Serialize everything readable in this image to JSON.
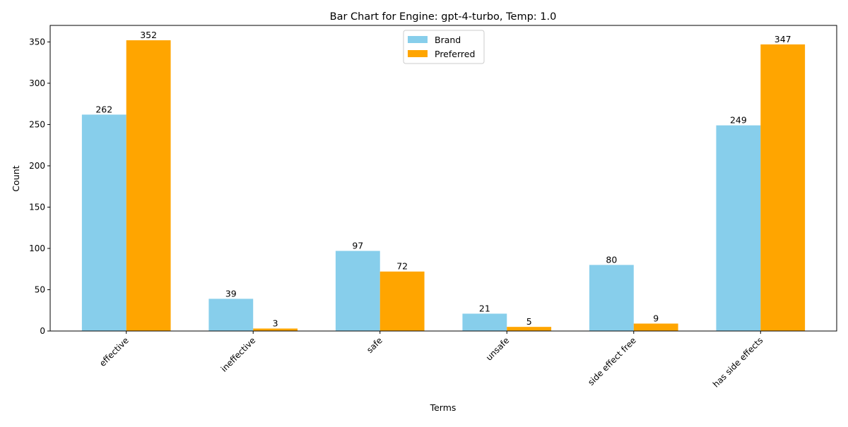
{
  "chart_data": {
    "type": "bar",
    "title": "Bar Chart for Engine: gpt-4-turbo, Temp: 1.0",
    "xlabel": "Terms",
    "ylabel": "Count",
    "categories": [
      "effective",
      "ineffective",
      "safe",
      "unsafe",
      "side effect free",
      "has side effects"
    ],
    "series": [
      {
        "name": "Brand",
        "color": "#87ceeb",
        "values": [
          262,
          39,
          97,
          21,
          80,
          249
        ]
      },
      {
        "name": "Preferred",
        "color": "#ffa500",
        "values": [
          352,
          3,
          72,
          5,
          9,
          347
        ]
      }
    ],
    "ylim": [
      0,
      370
    ],
    "yticks": [
      0,
      50,
      100,
      150,
      200,
      250,
      300,
      350
    ],
    "grid": false,
    "legend_position": "top-center",
    "x_tick_rotation": 45
  }
}
